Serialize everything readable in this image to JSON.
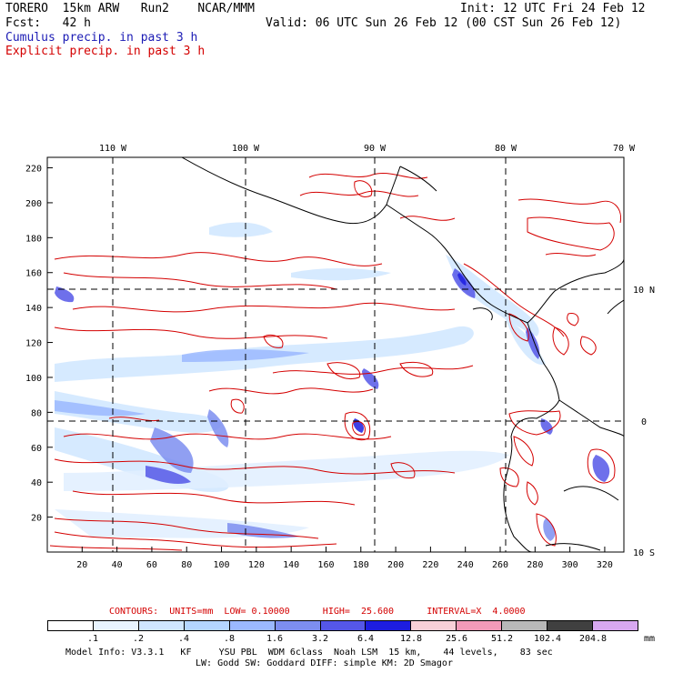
{
  "header": {
    "model": "TORERO  15km ARW   Run2    NCAR/MMM",
    "init": "Init: 12 UTC Fri 24 Feb 12",
    "fcst": "Fcst:   42 h",
    "valid": "Valid: 06 UTC Sun 26 Feb 12 (00 CST Sun 26 Feb 12)",
    "legend_cumulus": "Cumulus precip. in past 3 h",
    "legend_explicit": "Explicit precip. in past 3 h"
  },
  "colors": {
    "cumulus": "#1b1bb5",
    "explicit": "#d40000",
    "coast": "#000000"
  },
  "axes": {
    "top_lon_labels": [
      "110 W",
      "100 W",
      "90 W",
      "80 W",
      "70 W"
    ],
    "right_lat_labels": [
      "10 N",
      "0",
      "10 S"
    ],
    "x_ticks": [
      "20",
      "40",
      "60",
      "80",
      "100",
      "120",
      "140",
      "160",
      "180",
      "200",
      "220",
      "240",
      "260",
      "280",
      "300",
      "320"
    ],
    "y_ticks": [
      "220",
      "200",
      "180",
      "160",
      "140",
      "120",
      "100",
      "80",
      "60",
      "40",
      "20"
    ]
  },
  "contour_info": {
    "text": "CONTOURS:  UNITS=mm  LOW= 0.10000      HIGH=  25.600      INTERVAL=X  4.0000"
  },
  "colorbar": {
    "colors": [
      "#ffffff",
      "#e8f4ff",
      "#cfe6ff",
      "#b4d6ff",
      "#9bb8ff",
      "#7d8ef0",
      "#5557e8",
      "#1d1de0",
      "#f8d0d8",
      "#f29ab8",
      "#b8b8b8",
      "#404040",
      "#d8a8f0"
    ],
    "labels": [
      ".1",
      ".2",
      ".4",
      ".8",
      "1.6",
      "3.2",
      "6.4",
      "12.8",
      "25.6",
      "51.2",
      "102.4",
      "204.8"
    ],
    "unit": "mm"
  },
  "footer": {
    "line1": "Model Info: V3.3.1   KF     YSU PBL  WDM 6class  Noah LSM  15 km,    44 levels,    83 sec",
    "line2": "LW: Godd SW: Goddard DIFF: simple KM: 2D Smagor"
  }
}
